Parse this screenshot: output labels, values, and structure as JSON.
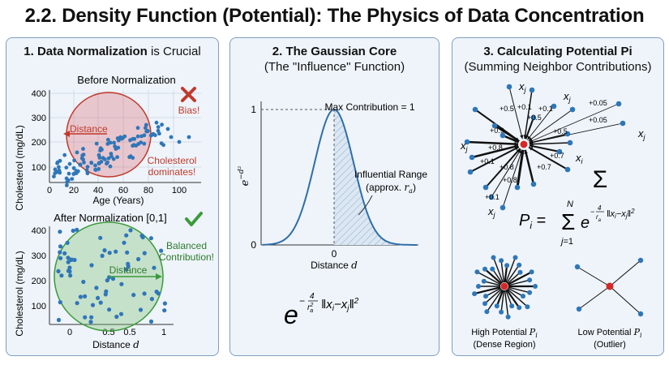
{
  "title": "2.2. Density Function (Potential): The Physics of Data Concentration",
  "panel1": {
    "heading_bold": "1. Data Normalization",
    "heading_rest": " is Crucial",
    "before": {
      "label": "Before Normalization",
      "ylabel": "Cholesterol (mg/dL)",
      "xlabel": "Age (Years)",
      "xticks": [
        "0",
        "20",
        "40",
        "60",
        "80",
        "100"
      ],
      "yticks": [
        "100",
        "200",
        "300",
        "400"
      ],
      "distance": "Distance",
      "bias": "Bias!",
      "dominates_1": "Cholesterol",
      "dominates_2": "dominates!"
    },
    "after": {
      "label": "After Normalization [0,1]",
      "ylabel": "Cholesterol (mg/dL)",
      "xlabel": "Distance d",
      "xticks": [
        "0",
        "0.5",
        "0.5",
        "1"
      ],
      "yticks": [
        "100",
        "200",
        "300",
        "400"
      ],
      "distance": "Distance",
      "balanced_1": "Balanced",
      "balanced_2": "Contribution!"
    }
  },
  "panel2": {
    "heading": "2. The Gaussian Core",
    "subheading": "(The \"Influence\" Function)",
    "ylabel": "e^(-d^2)",
    "xlabel": "Distance d",
    "max_label": "Max Contribution = 1",
    "range_1": "Influential Range",
    "range_2": "(approx. r_a)",
    "tick_one": "1",
    "tick_zero": "0",
    "tick_x0": "0",
    "formula": "e^(-4/r_a^2 ||x_i - x_j||^2)"
  },
  "panel3": {
    "heading": "3. Calculating Potential Pi",
    "subheading": "(Summing Neighbor Contributions)",
    "weights": [
      "+0.5",
      "+0.1",
      "+0.1",
      "+0.05",
      "+0.9",
      "+0.5",
      "+0.05",
      "+0.5",
      "+0.8",
      "+0.7",
      "+0.1",
      "+0.8",
      "+0.7",
      "+0.8",
      "+0.1"
    ],
    "xj": "x_j",
    "xi": "x_i",
    "sigma": "Σ",
    "formula": "P_i = Σ_{j=1}^{N} e^(-4/r_a^2 ||x_i - x_j||^2)",
    "high_1": "High Potential P_i",
    "high_2": "(Dense Region)",
    "low_1": "Low Potential P_i",
    "low_2": "(Outlier)"
  },
  "colors": {
    "dot": "#2f76b8",
    "red": "#c0392b",
    "green": "#3b9a3b",
    "panel_border": "#7f9fbe"
  }
}
